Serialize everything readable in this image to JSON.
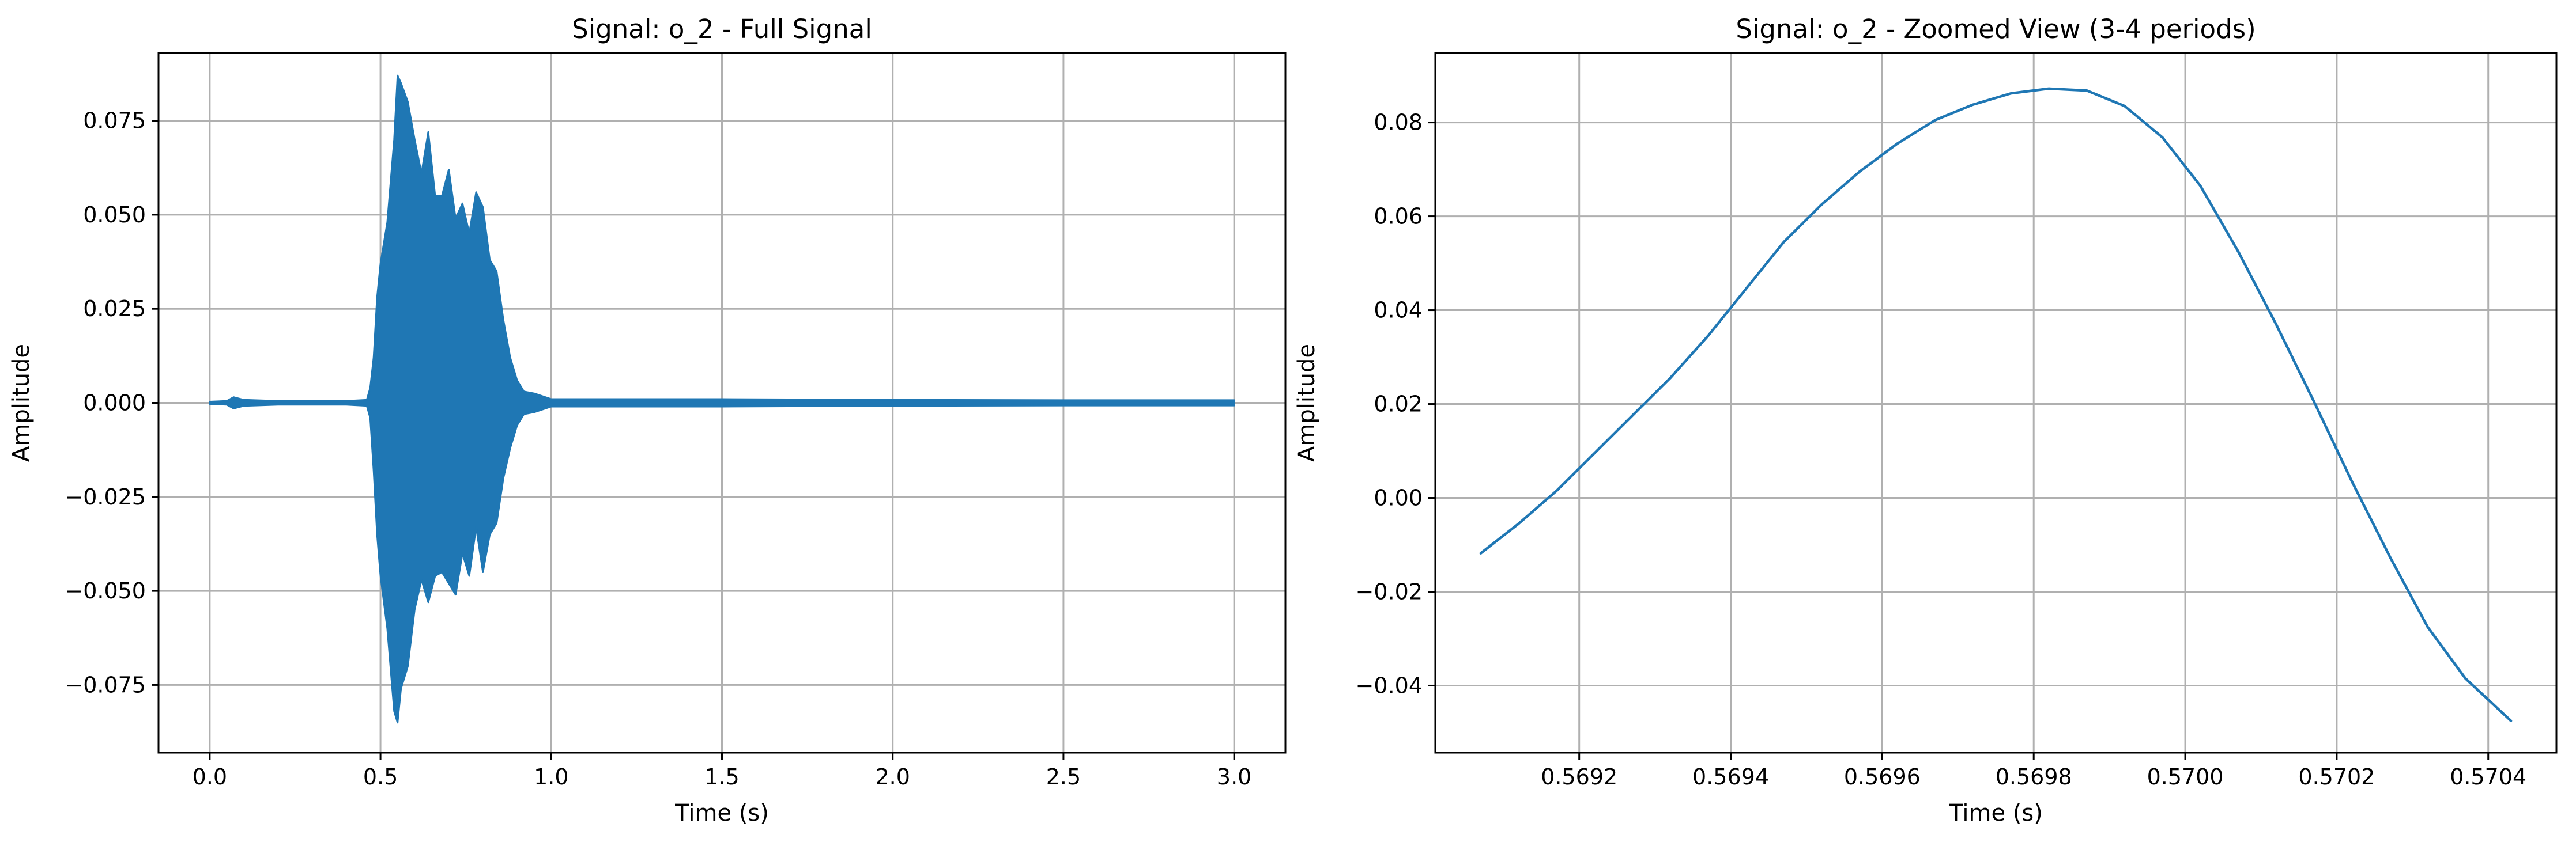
{
  "chart_data": [
    {
      "type": "line",
      "title": "Signal: o_2 - Full Signal",
      "xlabel": "Time (s)",
      "ylabel": "Amplitude",
      "xlim": [
        -0.15,
        3.15
      ],
      "ylim": [
        -0.093,
        0.093
      ],
      "xticks": [
        0.0,
        0.5,
        1.0,
        1.5,
        2.0,
        2.5,
        3.0
      ],
      "xtick_labels": [
        "0.0",
        "0.5",
        "1.0",
        "1.5",
        "2.0",
        "2.5",
        "3.0"
      ],
      "yticks": [
        -0.075,
        -0.05,
        -0.025,
        0.0,
        0.025,
        0.05,
        0.075
      ],
      "ytick_labels": [
        "−0.075",
        "−0.050",
        "−0.025",
        "0.000",
        "0.025",
        "0.050",
        "0.075"
      ],
      "grid": true,
      "color": "#1f77b4",
      "envelope": {
        "t": [
          0.0,
          0.05,
          0.07,
          0.1,
          0.2,
          0.3,
          0.4,
          0.46,
          0.47,
          0.48,
          0.49,
          0.5,
          0.52,
          0.54,
          0.55,
          0.56,
          0.58,
          0.6,
          0.62,
          0.64,
          0.66,
          0.68,
          0.7,
          0.72,
          0.74,
          0.76,
          0.78,
          0.8,
          0.82,
          0.84,
          0.86,
          0.88,
          0.9,
          0.92,
          0.95,
          1.0,
          1.5,
          2.0,
          2.5,
          3.0
        ],
        "upper": [
          0.0003,
          0.0005,
          0.0015,
          0.0008,
          0.0005,
          0.0005,
          0.0005,
          0.0008,
          0.004,
          0.012,
          0.028,
          0.037,
          0.048,
          0.07,
          0.087,
          0.085,
          0.08,
          0.07,
          0.061,
          0.072,
          0.055,
          0.055,
          0.062,
          0.049,
          0.053,
          0.045,
          0.056,
          0.052,
          0.038,
          0.035,
          0.022,
          0.012,
          0.006,
          0.003,
          0.0025,
          0.001,
          0.001,
          0.0008,
          0.0007,
          0.0007
        ],
        "lower": [
          -0.0003,
          -0.0005,
          -0.0015,
          -0.0008,
          -0.0005,
          -0.0005,
          -0.0005,
          -0.0008,
          -0.004,
          -0.018,
          -0.035,
          -0.046,
          -0.06,
          -0.082,
          -0.085,
          -0.076,
          -0.07,
          -0.055,
          -0.047,
          -0.053,
          -0.046,
          -0.045,
          -0.048,
          -0.051,
          -0.04,
          -0.046,
          -0.033,
          -0.045,
          -0.035,
          -0.032,
          -0.02,
          -0.012,
          -0.006,
          -0.003,
          -0.0025,
          -0.001,
          -0.001,
          -0.0008,
          -0.0007,
          -0.0007
        ]
      }
    },
    {
      "type": "line",
      "title": "Signal: o_2 - Zoomed View (3-4 periods)",
      "xlabel": "Time (s)",
      "ylabel": "Amplitude",
      "xlim": [
        0.56901,
        0.57049
      ],
      "ylim": [
        -0.0543,
        0.0948
      ],
      "xticks": [
        0.5692,
        0.5694,
        0.5696,
        0.5698,
        0.57,
        0.5702,
        0.5704
      ],
      "xtick_labels": [
        "0.5692",
        "0.5694",
        "0.5696",
        "0.5698",
        "0.5700",
        "0.5702",
        "0.5704"
      ],
      "yticks": [
        -0.04,
        -0.02,
        0.0,
        0.02,
        0.04,
        0.06,
        0.08
      ],
      "ytick_labels": [
        "−0.04",
        "−0.02",
        "0.00",
        "0.02",
        "0.04",
        "0.06",
        "0.08"
      ],
      "grid": true,
      "color": "#1f77b4",
      "x": [
        0.56907,
        0.56912,
        0.56917,
        0.56922,
        0.56927,
        0.56932,
        0.56937,
        0.56942,
        0.56947,
        0.56952,
        0.56957,
        0.56962,
        0.56967,
        0.56972,
        0.56977,
        0.56982,
        0.56987,
        0.56992,
        0.56997,
        0.57002,
        0.57007,
        0.57012,
        0.57017,
        0.57022,
        0.57027,
        0.57032,
        0.57037,
        0.57043
      ],
      "y": [
        -0.0118,
        -0.0055,
        0.0015,
        0.0095,
        0.0175,
        0.0255,
        0.0345,
        0.0445,
        0.0545,
        0.0625,
        0.0695,
        0.0755,
        0.0805,
        0.0838,
        0.0862,
        0.0872,
        0.0868,
        0.0835,
        0.0768,
        0.0665,
        0.0525,
        0.037,
        0.0205,
        0.0035,
        -0.0125,
        -0.0275,
        -0.0385,
        -0.0475
      ]
    }
  ]
}
